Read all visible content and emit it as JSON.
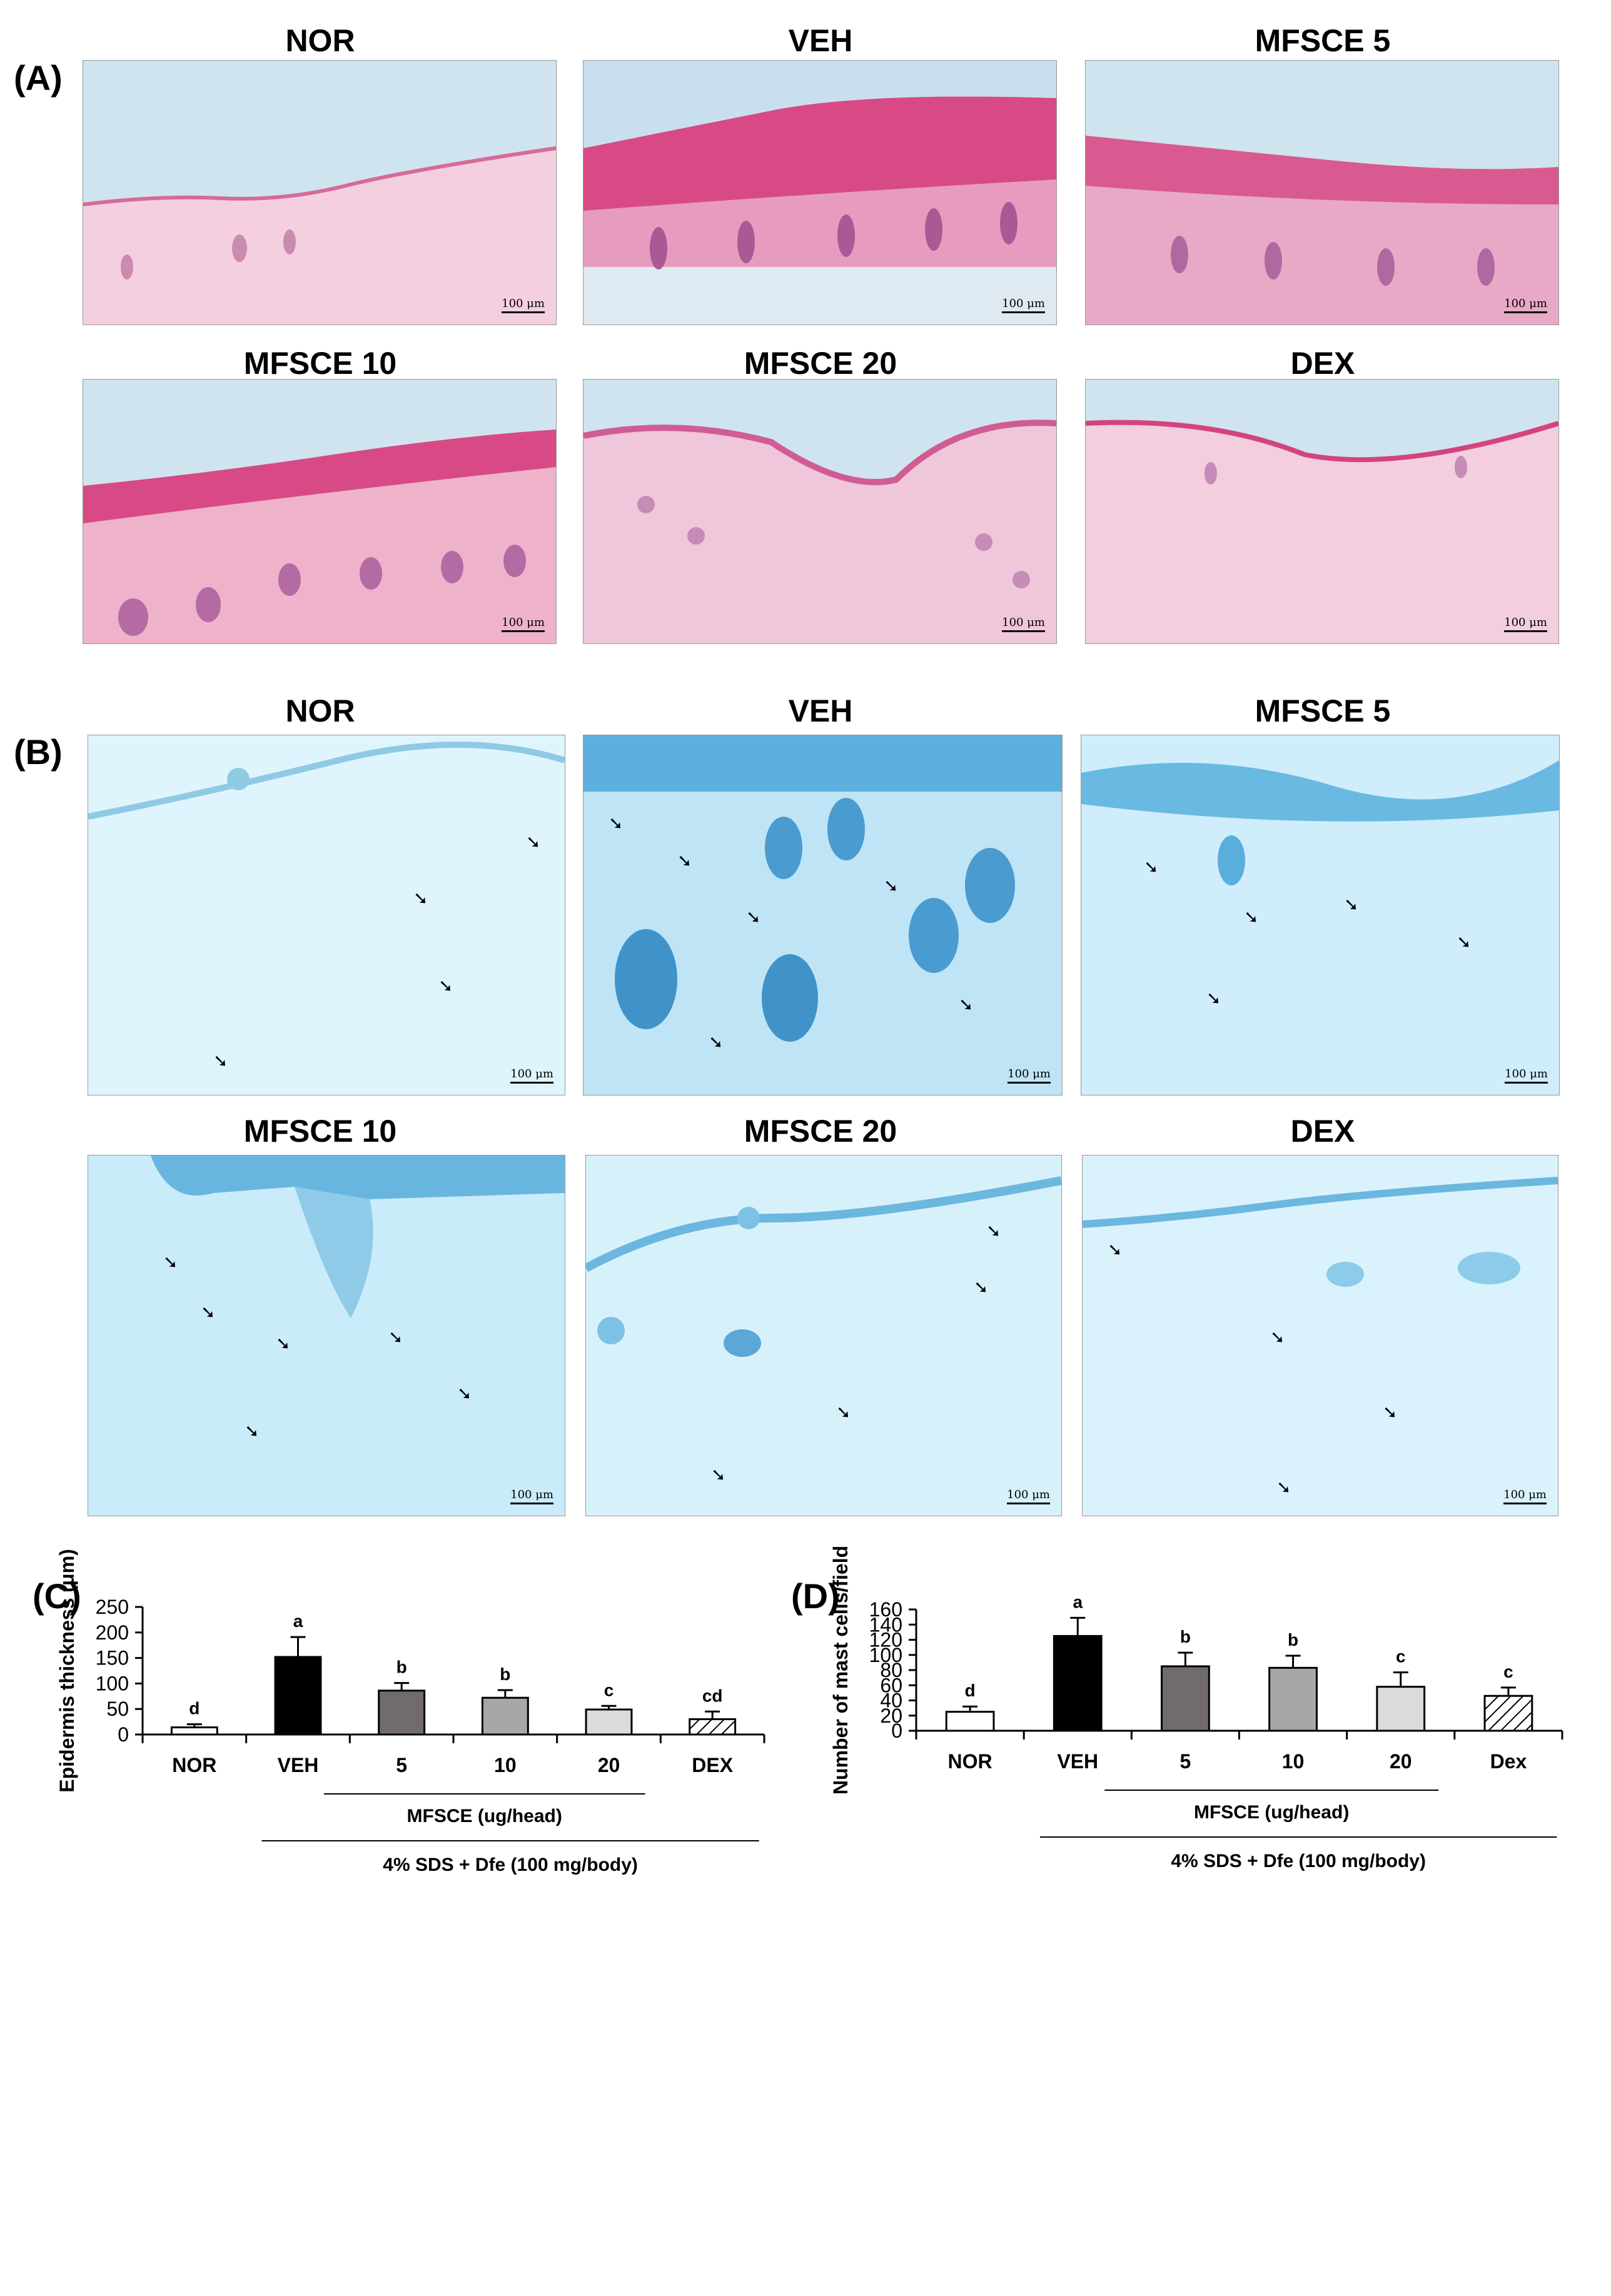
{
  "panels": {
    "a_label": "(A)",
    "b_label": "(B)",
    "c_label": "(C)",
    "d_label": "(D)"
  },
  "micrographs_a": {
    "titles": [
      "NOR",
      "VEH",
      "MFSCE 5",
      "MFSCE 10",
      "MFSCE 20",
      "DEX"
    ],
    "scale_label": "100 μm",
    "colors": {
      "background": "#c9e3ee",
      "tissue": "#f2bcd4",
      "epidermis": "#d8417e"
    }
  },
  "micrographs_b": {
    "titles": [
      "NOR",
      "VEH",
      "MFSCE 5",
      "MFSCE 10",
      "MFSCE 20",
      "DEX"
    ],
    "scale_label": "100 μm",
    "colors": {
      "background": "#cfeffc",
      "tissue": "#8ecde8",
      "stain": "#3a8dc4"
    }
  },
  "chart_data": [
    {
      "type": "bar",
      "panel": "(C)",
      "ylabel": "Epidermis thickness (μm)",
      "ylim": [
        0,
        250
      ],
      "yticks": [
        0,
        50,
        100,
        150,
        200,
        250
      ],
      "categories": [
        "NOR",
        "VEH",
        "5",
        "10",
        "20",
        "DEX"
      ],
      "values": [
        14,
        152,
        86,
        72,
        49,
        30
      ],
      "errors": [
        6,
        39,
        15,
        15,
        7,
        15
      ],
      "letters": [
        "d",
        "a",
        "b",
        "b",
        "c",
        "cd"
      ],
      "fills": [
        "#ffffff",
        "#000000",
        "#716b6b",
        "#a9a6a6",
        "#dbdbdb",
        "hatch"
      ],
      "group_label": "MFSCE (ug/head)",
      "treatment_label": "4% SDS + Dfe (100 mg/body)"
    },
    {
      "type": "bar",
      "panel": "(D)",
      "ylabel": "Number of mast cells/field",
      "ylim": [
        0,
        160
      ],
      "yticks": [
        0,
        20,
        40,
        60,
        80,
        100,
        120,
        140,
        160
      ],
      "categories": [
        "NOR",
        "VEH",
        "5",
        "10",
        "20",
        "Dex"
      ],
      "values": [
        25,
        125,
        85,
        83,
        58,
        46
      ],
      "errors": [
        7,
        24,
        18,
        16,
        19,
        11
      ],
      "letters": [
        "d",
        "a",
        "b",
        "b",
        "c",
        "c"
      ],
      "fills": [
        "#ffffff",
        "#000000",
        "#716b6b",
        "#a9a6a6",
        "#dbdbdb",
        "hatch"
      ],
      "group_label": "MFSCE (ug/head)",
      "treatment_label": "4% SDS + Dfe (100 mg/body)"
    }
  ]
}
